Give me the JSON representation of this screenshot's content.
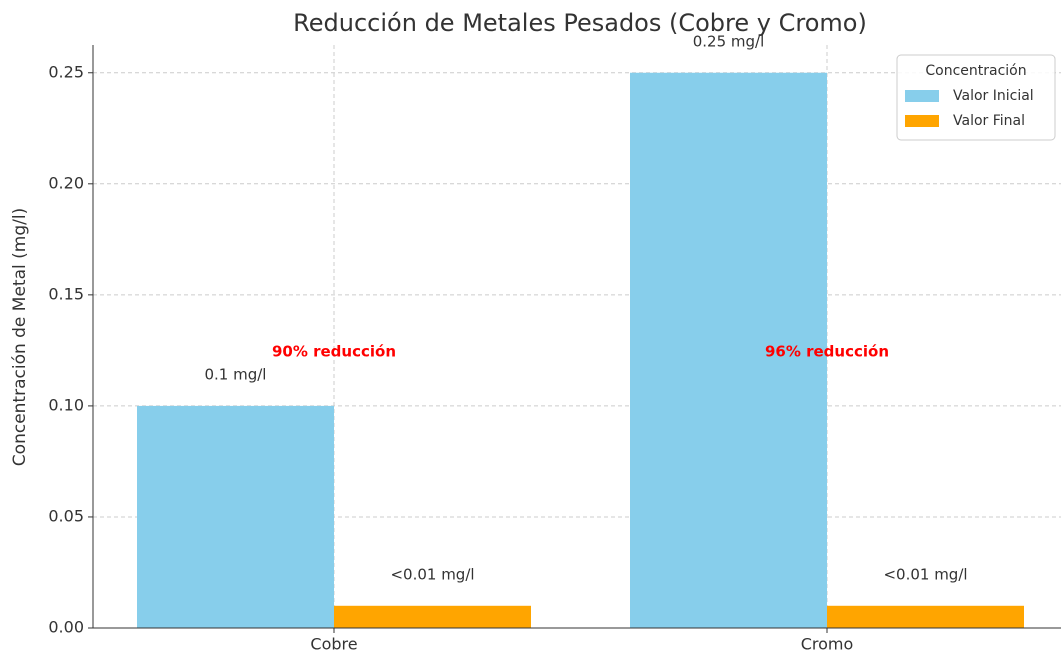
{
  "chart_data": {
    "type": "bar",
    "title": "Reducción de Metales Pesados (Cobre y Cromo)",
    "y_label": "Concentración de Metal (mg/l)",
    "categories": [
      "Cobre",
      "Cromo"
    ],
    "series": [
      {
        "name": "Valor Inicial",
        "color": "#87ceeb",
        "values": [
          0.1,
          0.25
        ],
        "value_labels": [
          "0.1 mg/l",
          "0.25 mg/l"
        ]
      },
      {
        "name": "Valor Final",
        "color": "#ffa500",
        "values": [
          0.01,
          0.01
        ],
        "value_labels": [
          "<0.01 mg/l",
          "<0.01 mg/l"
        ]
      }
    ],
    "annotations": [
      "90% reducción",
      "96% reducción"
    ],
    "annotation_color": "#ff0000",
    "legend_title": "Concentración",
    "legend_position": "upper right",
    "ylim": [
      0,
      0.2625
    ],
    "yticks": [
      {
        "value": 0,
        "label": "0.00"
      },
      0.05,
      {
        "value": 0.1,
        "label": "0.10"
      },
      0.15,
      {
        "value": 0.2,
        "label": "0.20"
      },
      0.25
    ],
    "grid": true
  }
}
